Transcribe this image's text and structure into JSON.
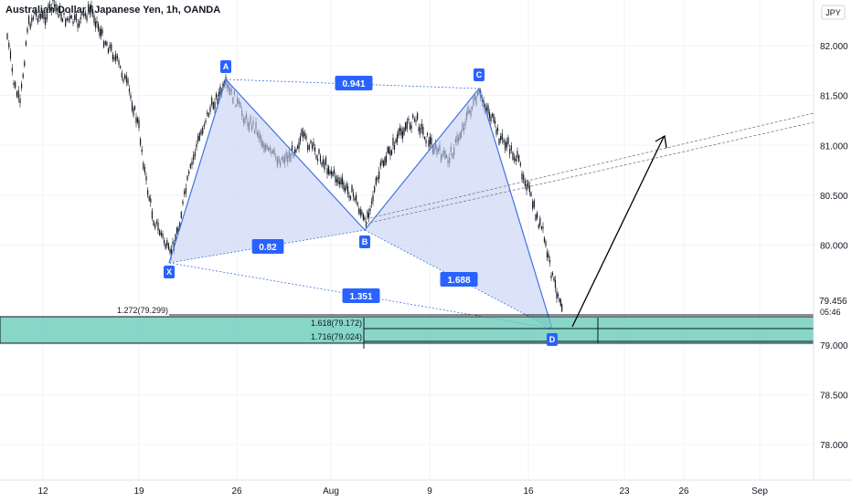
{
  "chart": {
    "title": "Australian Dollar / Japanese Yen, 1h, OANDA",
    "currency": "JPY",
    "last_price": "79.456",
    "countdown": "05:46",
    "colors": {
      "pattern_fill": "#c5d1f3",
      "pattern_stroke": "#3f72e0",
      "label_bg": "#2962ff",
      "zone_fill": "#5fc8b6",
      "zone_line": "#131722",
      "grid": "#f0f3fa",
      "candle": "#131722",
      "arrow": "#000000",
      "trend": "#787b86"
    }
  },
  "price_axis": {
    "ticks": [
      {
        "value": 82.0,
        "label": "82.000"
      },
      {
        "value": 81.5,
        "label": "81.500"
      },
      {
        "value": 81.0,
        "label": "81.000"
      },
      {
        "value": 80.5,
        "label": "80.500"
      },
      {
        "value": 80.0,
        "label": "80.000"
      },
      {
        "value": 79.0,
        "label": "79.000"
      },
      {
        "value": 78.5,
        "label": "78.500"
      },
      {
        "value": 78.0,
        "label": "78.000"
      }
    ]
  },
  "time_axis": {
    "labels": [
      "12",
      "19",
      "26",
      "Aug",
      "9",
      "16",
      "23",
      "26",
      "Sep"
    ]
  },
  "pattern": {
    "points": [
      {
        "name": "X",
        "price": 79.84
      },
      {
        "name": "A",
        "price": 81.67
      },
      {
        "name": "B",
        "price": 80.17
      },
      {
        "name": "C",
        "price": 81.58
      },
      {
        "name": "D",
        "price": 79.14
      }
    ],
    "ratios": [
      {
        "label": "0.941",
        "between": "A-C"
      },
      {
        "label": "0.82",
        "between": "X-B"
      },
      {
        "label": "1.351",
        "between": "X-D"
      },
      {
        "label": "1.688",
        "between": "B-D"
      }
    ]
  },
  "fib_levels": [
    {
      "label": "1.272(79.299)",
      "price": 79.299
    },
    {
      "label": "1.618(79.172)",
      "price": 79.172
    },
    {
      "label": "1.716(79.024)",
      "price": 79.024
    }
  ],
  "chart_data": {
    "type": "line",
    "title": "Australian Dollar / Japanese Yen, 1h, OANDA",
    "xlabel": "",
    "ylabel": "",
    "ylim": [
      77.75,
      82.25
    ],
    "categories": [
      "12",
      "19",
      "26",
      "Aug",
      "9",
      "16",
      "23",
      "26",
      "Sep"
    ],
    "series": [
      {
        "name": "XABCD",
        "x": [
          "X",
          "A",
          "B",
          "C",
          "D"
        ],
        "values": [
          79.84,
          81.67,
          80.17,
          81.58,
          79.14
        ]
      }
    ],
    "grid": true,
    "legend": "none"
  }
}
